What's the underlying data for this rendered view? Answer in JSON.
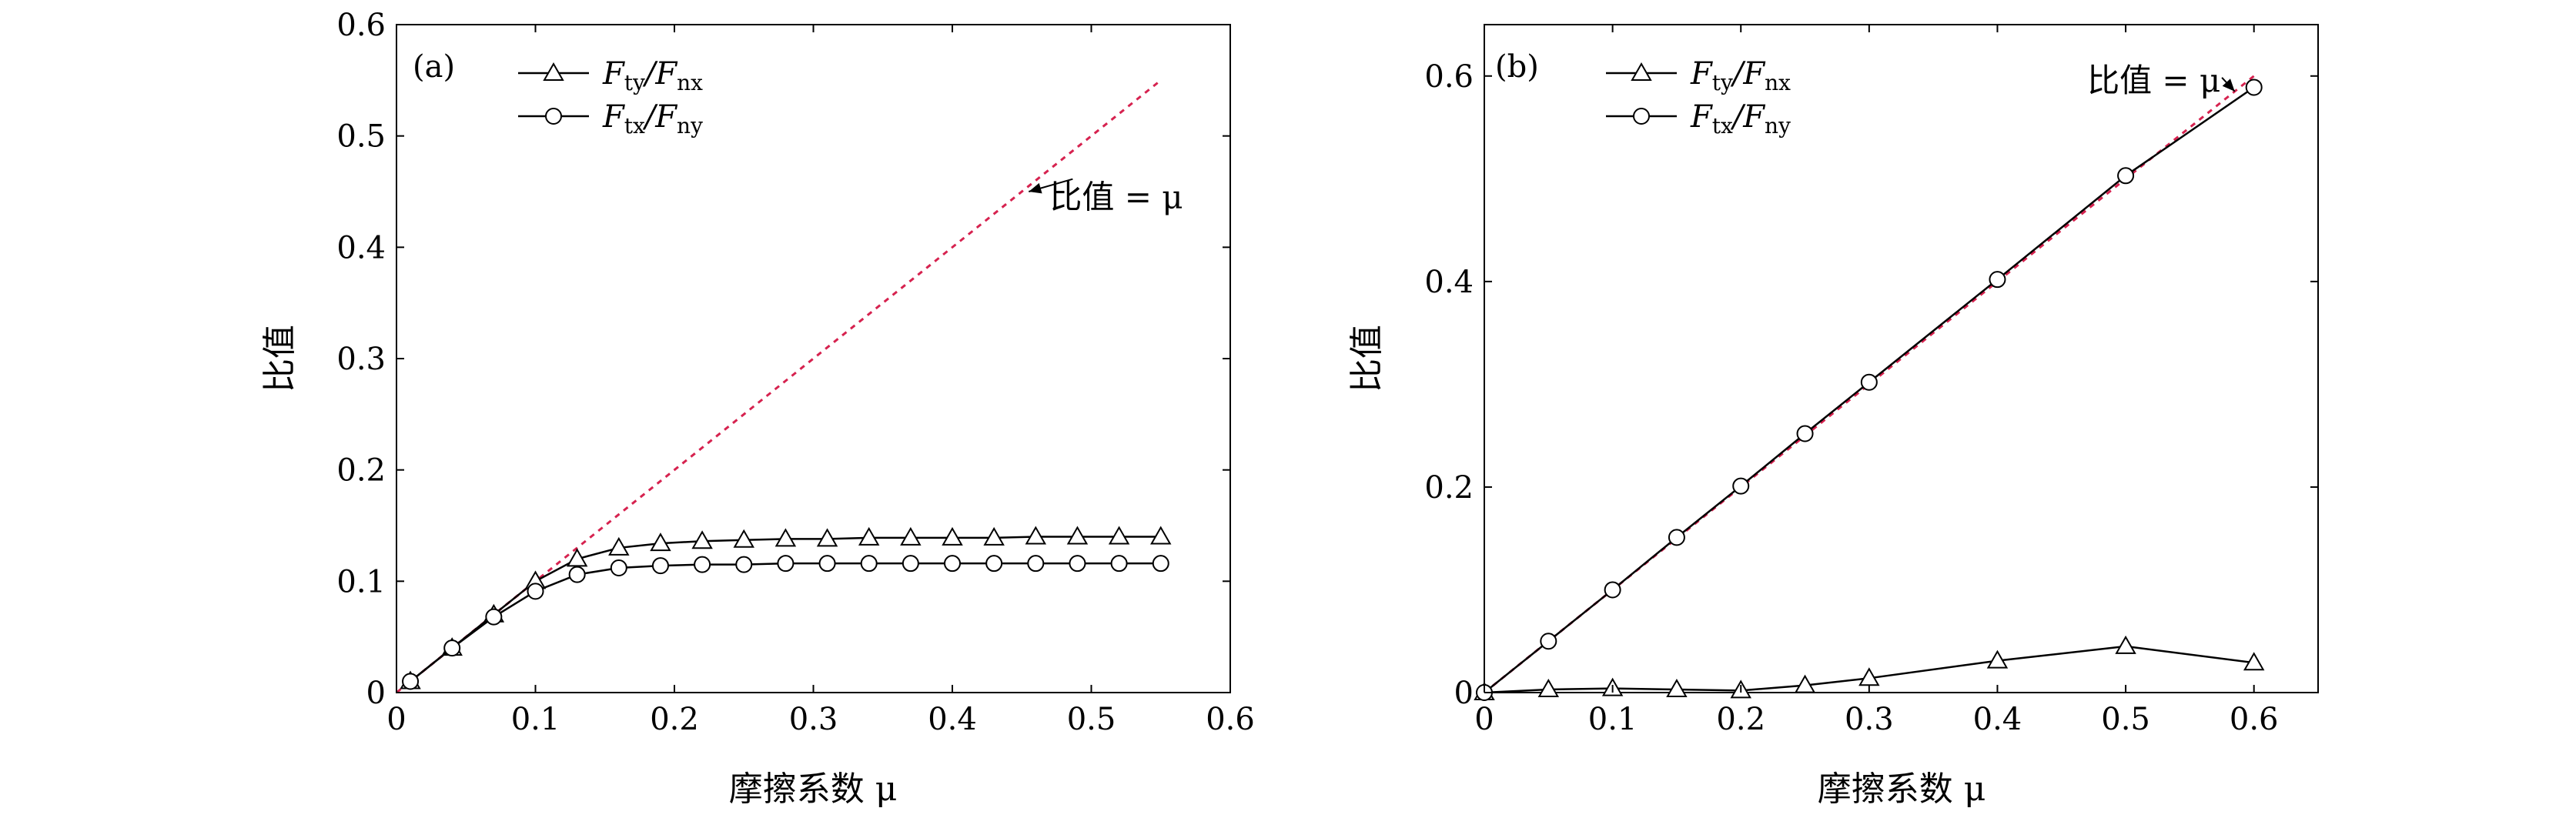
{
  "chart_data": [
    {
      "type": "line",
      "panel_label": "(a)",
      "xlabel": "摩擦系数 μ",
      "ylabel": "比值",
      "xlim": [
        0,
        0.6
      ],
      "ylim": [
        0,
        0.6
      ],
      "xticks": [
        "0",
        "0.1",
        "0.2",
        "0.3",
        "0.4",
        "0.5",
        "0.6"
      ],
      "yticks": [
        "0",
        "0.1",
        "0.2",
        "0.3",
        "0.4",
        "0.5",
        "0.6"
      ],
      "grid": false,
      "legend_position": "top-left",
      "series": [
        {
          "name_main": "F",
          "name_sub": "ty",
          "name_mid": "/F",
          "name_sub2": "nx",
          "marker": "triangle",
          "x": [
            0.01,
            0.04,
            0.07,
            0.1,
            0.13,
            0.16,
            0.19,
            0.22,
            0.25,
            0.28,
            0.31,
            0.34,
            0.37,
            0.4,
            0.43,
            0.46,
            0.49,
            0.52,
            0.55
          ],
          "y": [
            0.01,
            0.04,
            0.07,
            0.1,
            0.12,
            0.13,
            0.134,
            0.136,
            0.137,
            0.138,
            0.138,
            0.139,
            0.139,
            0.139,
            0.139,
            0.14,
            0.14,
            0.14,
            0.14
          ]
        },
        {
          "name_main": "F",
          "name_sub": "tx",
          "name_mid": "/F",
          "name_sub2": "ny",
          "marker": "circle",
          "x": [
            0.01,
            0.04,
            0.07,
            0.1,
            0.13,
            0.16,
            0.19,
            0.22,
            0.25,
            0.28,
            0.31,
            0.34,
            0.37,
            0.4,
            0.43,
            0.46,
            0.49,
            0.52,
            0.55
          ],
          "y": [
            0.01,
            0.04,
            0.068,
            0.091,
            0.106,
            0.112,
            0.114,
            0.115,
            0.115,
            0.116,
            0.116,
            0.116,
            0.116,
            0.116,
            0.116,
            0.116,
            0.116,
            0.116,
            0.116
          ]
        }
      ],
      "reference_line": {
        "x": [
          0.0,
          0.55
        ],
        "y": [
          0.0,
          0.55
        ],
        "color": "#d6224f",
        "style": "dotted"
      },
      "annotation": {
        "text": "比值 = μ",
        "x": 0.47,
        "y": 0.435,
        "arrow_to": [
          0.455,
          0.45
        ]
      }
    },
    {
      "type": "line",
      "panel_label": "(b)",
      "xlabel": "摩擦系数 μ",
      "ylabel": "比值",
      "xlim": [
        0,
        0.65
      ],
      "ylim": [
        0,
        0.65
      ],
      "xticks": [
        "0",
        "0.1",
        "0.2",
        "0.3",
        "0.4",
        "0.5",
        "0.6"
      ],
      "yticks": [
        "0",
        "0.2",
        "0.4",
        "0.6"
      ],
      "grid": false,
      "legend_position": "top-left",
      "series": [
        {
          "name_main": "F",
          "name_sub": "ty",
          "name_mid": "/F",
          "name_sub2": "nx",
          "marker": "triangle",
          "x": [
            0,
            0.05,
            0.1,
            0.15,
            0.2,
            0.25,
            0.3,
            0.4,
            0.5,
            0.6
          ],
          "y": [
            0.0,
            0.003,
            0.004,
            0.003,
            0.002,
            0.007,
            0.014,
            0.031,
            0.045,
            0.029
          ]
        },
        {
          "name_main": "F",
          "name_sub": "tx",
          "name_mid": "/F",
          "name_sub2": "ny",
          "marker": "circle",
          "x": [
            0,
            0.05,
            0.1,
            0.15,
            0.2,
            0.25,
            0.3,
            0.4,
            0.5,
            0.6
          ],
          "y": [
            0.0,
            0.05,
            0.1,
            0.151,
            0.201,
            0.252,
            0.302,
            0.402,
            0.503,
            0.589
          ]
        }
      ],
      "reference_line": {
        "x": [
          0.0,
          0.6
        ],
        "y": [
          0.0,
          0.6
        ],
        "color": "#d6224f",
        "style": "dotted"
      },
      "annotation": {
        "text": "比值 = μ",
        "x": 0.47,
        "y": 0.585,
        "arrow_to": [
          0.585,
          0.585
        ]
      }
    }
  ]
}
